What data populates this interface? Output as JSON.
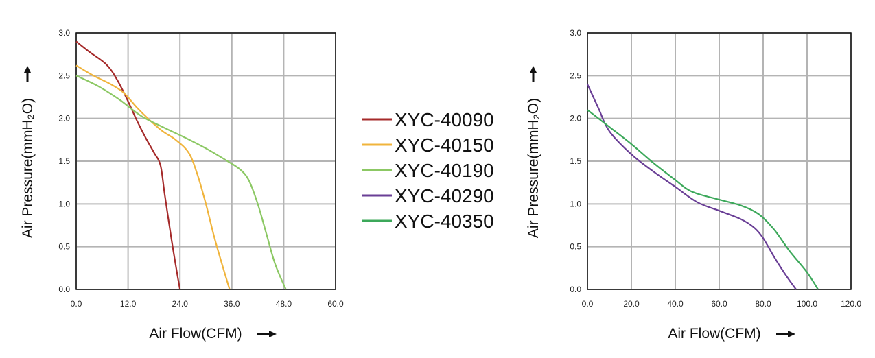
{
  "chart_data": [
    {
      "type": "line",
      "xlabel": "Air Flow(CFM)",
      "ylabel": "Air Pressure(mmH₂O)",
      "xlim": [
        0,
        60
      ],
      "ylim": [
        0,
        3
      ],
      "x_ticks": [
        "0.0",
        "12.0",
        "24.0",
        "36.0",
        "48.0",
        "60.0"
      ],
      "y_ticks": [
        "0.0",
        "0.5",
        "1.0",
        "1.5",
        "2.0",
        "2.5",
        "3.0"
      ],
      "grid": true,
      "legend": "right",
      "series": [
        {
          "name": "XYC-40090",
          "color": "#a52a2a",
          "points": [
            [
              0,
              2.9
            ],
            [
              3,
              2.78
            ],
            [
              7,
              2.63
            ],
            [
              9.5,
              2.45
            ],
            [
              12,
              2.2
            ],
            [
              14,
              1.98
            ],
            [
              16,
              1.78
            ],
            [
              18,
              1.6
            ],
            [
              19.5,
              1.45
            ],
            [
              20.5,
              1.1
            ],
            [
              22,
              0.6
            ],
            [
              23.3,
              0.2
            ],
            [
              24,
              0
            ]
          ]
        },
        {
          "name": "XYC-40150",
          "color": "#f0b43c",
          "points": [
            [
              0,
              2.62
            ],
            [
              4,
              2.5
            ],
            [
              8,
              2.4
            ],
            [
              11,
              2.3
            ],
            [
              14,
              2.13
            ],
            [
              17,
              1.98
            ],
            [
              20,
              1.85
            ],
            [
              23,
              1.75
            ],
            [
              26,
              1.6
            ],
            [
              28,
              1.35
            ],
            [
              30,
              1.0
            ],
            [
              32,
              0.6
            ],
            [
              34,
              0.25
            ],
            [
              35.5,
              0
            ]
          ]
        },
        {
          "name": "XYC-40190",
          "color": "#8cc864",
          "points": [
            [
              0,
              2.5
            ],
            [
              5,
              2.38
            ],
            [
              10,
              2.22
            ],
            [
              15,
              2.03
            ],
            [
              20,
              1.9
            ],
            [
              25,
              1.78
            ],
            [
              30,
              1.65
            ],
            [
              35,
              1.5
            ],
            [
              38,
              1.4
            ],
            [
              40,
              1.27
            ],
            [
              42,
              1.0
            ],
            [
              44,
              0.65
            ],
            [
              46,
              0.3
            ],
            [
              48.5,
              0
            ]
          ]
        }
      ]
    },
    {
      "type": "line",
      "xlabel": "Air Flow(CFM)",
      "ylabel": "Air Pressure(mmH₂O)",
      "xlim": [
        0,
        120
      ],
      "ylim": [
        0,
        3
      ],
      "x_ticks": [
        "0.0",
        "20.0",
        "40.0",
        "60.0",
        "80.0",
        "100.0",
        "120.0"
      ],
      "y_ticks": [
        "0.0",
        "0.5",
        "1.0",
        "1.5",
        "2.0",
        "2.5",
        "3.0"
      ],
      "grid": true,
      "series": [
        {
          "name": "XYC-40290",
          "color": "#6a3f96",
          "points": [
            [
              0,
              2.4
            ],
            [
              5,
              2.12
            ],
            [
              10,
              1.85
            ],
            [
              20,
              1.58
            ],
            [
              30,
              1.38
            ],
            [
              40,
              1.2
            ],
            [
              50,
              1.02
            ],
            [
              60,
              0.92
            ],
            [
              70,
              0.82
            ],
            [
              76,
              0.72
            ],
            [
              80,
              0.6
            ],
            [
              85,
              0.38
            ],
            [
              90,
              0.18
            ],
            [
              95,
              0
            ]
          ]
        },
        {
          "name": "XYC-40350",
          "color": "#3ca85a",
          "points": [
            [
              0,
              2.1
            ],
            [
              10,
              1.9
            ],
            [
              20,
              1.7
            ],
            [
              30,
              1.48
            ],
            [
              40,
              1.28
            ],
            [
              45,
              1.18
            ],
            [
              50,
              1.12
            ],
            [
              60,
              1.05
            ],
            [
              70,
              0.98
            ],
            [
              78,
              0.88
            ],
            [
              85,
              0.7
            ],
            [
              92,
              0.45
            ],
            [
              100,
              0.2
            ],
            [
              105,
              0
            ]
          ]
        }
      ]
    }
  ]
}
